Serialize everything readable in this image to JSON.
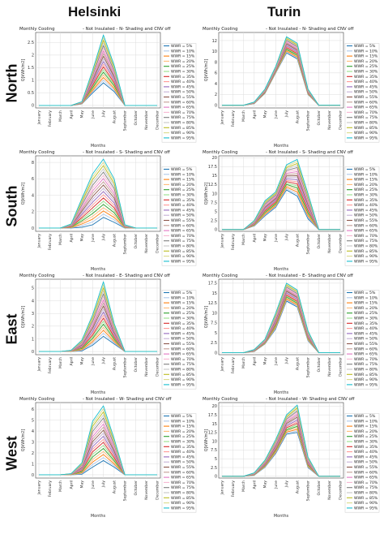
{
  "columns": [
    "Helsinki",
    "Turin"
  ],
  "rows": [
    "North",
    "South",
    "East",
    "West"
  ],
  "legend_labels": [
    "WWR = 5%",
    "WWR = 10%",
    "WWR = 15%",
    "WWR = 20%",
    "WWR = 25%",
    "WWR = 30%",
    "WWR = 35%",
    "WWR = 40%",
    "WWR = 45%",
    "WWR = 50%",
    "WWR = 55%",
    "WWR = 60%",
    "WWR = 65%",
    "WWR = 70%",
    "WWR = 75%",
    "WWR = 80%",
    "WWR = 85%",
    "WWR = 90%",
    "WWR = 95%"
  ],
  "series_colors": [
    "#1f77b4",
    "#aec7e8",
    "#ff7f0e",
    "#ffbb78",
    "#2ca02c",
    "#98df8a",
    "#d62728",
    "#ff9896",
    "#9467bd",
    "#c5b0d5",
    "#8c564b",
    "#c49c94",
    "#e377c2",
    "#f7b6d2",
    "#7f7f7f",
    "#c7c7c7",
    "#bcbd22",
    "#dbdb8d",
    "#17becf"
  ],
  "chart_data": [
    {
      "type": "line",
      "title_left": "Monthly Cooling",
      "title_right": "- Not Insulated - N- Shading and CNV off",
      "xlabel": "Months",
      "ylabel": "Q[kWh/m2]",
      "categories": [
        "January",
        "February",
        "March",
        "April",
        "May",
        "June",
        "July",
        "August",
        "September",
        "October",
        "November",
        "December"
      ],
      "yticks": [
        0.0,
        0.5,
        1.0,
        1.5,
        2.0,
        2.5
      ],
      "ylim": [
        -0.1,
        2.9
      ],
      "peak_low": [
        0,
        0,
        0,
        0,
        0.06,
        0.5,
        0.9,
        0.55,
        0,
        0,
        0,
        0
      ],
      "peak_high": [
        0,
        0,
        0,
        0,
        0.15,
        1.4,
        2.8,
        1.6,
        0,
        0,
        0,
        0
      ]
    },
    {
      "type": "line",
      "title_left": "Monthly Cooling",
      "title_right": "- Not Insulated - N- Shading and CNV off",
      "xlabel": "Months",
      "ylabel": "Q[kWh/m2]",
      "categories": [
        "January",
        "February",
        "March",
        "April",
        "May",
        "June",
        "July",
        "August",
        "September",
        "October",
        "November",
        "December"
      ],
      "yticks": [
        0,
        2,
        4,
        6,
        8,
        10,
        12
      ],
      "ylim": [
        -0.5,
        13.5
      ],
      "peak_low": [
        0,
        0,
        0,
        0.3,
        2.2,
        6.0,
        9.7,
        8.6,
        2.0,
        0,
        0,
        0
      ],
      "peak_high": [
        0,
        0,
        0,
        0.6,
        3.0,
        7.2,
        12.7,
        11.5,
        3.0,
        0,
        0,
        0
      ]
    },
    {
      "type": "line",
      "title_left": "Monthly Cooling",
      "title_right": "- Not Insulated - S- Shading and CNV off",
      "xlabel": "Months",
      "ylabel": "Q[kWh/m2]",
      "categories": [
        "January",
        "February",
        "March",
        "April",
        "May",
        "June",
        "July",
        "August",
        "September",
        "October",
        "November",
        "December"
      ],
      "yticks": [
        0,
        2,
        4,
        6,
        8
      ],
      "ylim": [
        -0.4,
        8.8
      ],
      "peak_low": [
        0,
        0,
        0,
        0,
        0.1,
        0.4,
        1.3,
        0.7,
        0,
        0,
        0,
        0
      ],
      "peak_high": [
        0,
        0,
        0,
        0.5,
        3.6,
        6.6,
        8.4,
        6.0,
        0.4,
        0,
        0,
        0
      ]
    },
    {
      "type": "line",
      "title_left": "Monthly Cooling",
      "title_right": "- Not Insulated - S- Shading and CNV off",
      "xlabel": "Months",
      "ylabel": "Q[kWh/m2]",
      "categories": [
        "January",
        "February",
        "March",
        "April",
        "May",
        "June",
        "July",
        "August",
        "September",
        "October",
        "November",
        "December"
      ],
      "yticks": [
        0.0,
        2.5,
        5.0,
        7.5,
        10.0,
        12.5,
        15.0,
        17.5,
        20.0
      ],
      "ylim": [
        -0.5,
        20.5
      ],
      "peak_low": [
        0,
        0,
        0,
        1.0,
        3.8,
        6.2,
        11.0,
        9.3,
        3.0,
        0,
        0,
        0
      ],
      "peak_high": [
        0,
        0,
        0,
        2.5,
        8.0,
        10.5,
        18.0,
        19.5,
        10.0,
        0,
        0,
        0
      ]
    },
    {
      "type": "line",
      "title_left": "Monthly Cooling",
      "title_right": "- Not Insulated - E- Shading and CNV off",
      "xlabel": "Months",
      "ylabel": "Q[kWh/m2]",
      "categories": [
        "January",
        "February",
        "March",
        "April",
        "May",
        "June",
        "July",
        "August",
        "September",
        "October",
        "November",
        "December"
      ],
      "yticks": [
        0,
        1,
        2,
        3,
        4,
        5
      ],
      "ylim": [
        -0.25,
        5.7
      ],
      "peak_low": [
        0,
        0,
        0,
        0,
        0.05,
        0.5,
        1.2,
        0.6,
        0,
        0,
        0,
        0
      ],
      "peak_high": [
        0,
        0,
        0,
        0.1,
        0.9,
        2.9,
        5.5,
        2.2,
        0,
        0,
        0,
        0
      ]
    },
    {
      "type": "line",
      "title_left": "Monthly Cooling",
      "title_right": "- Not Insulated - E- Shading and CNV off",
      "xlabel": "Months",
      "ylabel": "Q[kWh/m2]",
      "categories": [
        "January",
        "February",
        "March",
        "April",
        "May",
        "June",
        "July",
        "August",
        "September",
        "October",
        "November",
        "December"
      ],
      "yticks": [
        0.0,
        2.5,
        5.0,
        7.5,
        10.0,
        12.5,
        15.0,
        17.5
      ],
      "ylim": [
        -0.5,
        18.5
      ],
      "peak_low": [
        0,
        0,
        0,
        0.3,
        2.2,
        6.0,
        13.0,
        11.5,
        3.0,
        0,
        0,
        0
      ],
      "peak_high": [
        0,
        0,
        0,
        0.8,
        3.4,
        10.0,
        17.5,
        15.8,
        5.5,
        0,
        0,
        0
      ]
    },
    {
      "type": "line",
      "title_left": "Monthly Cooling",
      "title_right": "- Not Insulated - W- Shading and CNV off",
      "xlabel": "Months",
      "ylabel": "Q[kWh/m2]",
      "categories": [
        "January",
        "February",
        "March",
        "April",
        "May",
        "June",
        "July",
        "August",
        "September",
        "October",
        "November",
        "December"
      ],
      "yticks": [
        0,
        1,
        2,
        3,
        4,
        5,
        6
      ],
      "ylim": [
        -0.3,
        6.6
      ],
      "peak_low": [
        0,
        0,
        0,
        0,
        0.05,
        0.7,
        1.3,
        0.7,
        0,
        0,
        0,
        0
      ],
      "peak_high": [
        0,
        0,
        0,
        0.1,
        1.1,
        4.9,
        6.3,
        3.3,
        0,
        0,
        0,
        0
      ]
    },
    {
      "type": "line",
      "title_left": "Monthly Cooling",
      "title_right": "- Not Insulated - W- Shading and CNV off",
      "xlabel": "Months",
      "ylabel": "Q[kWh/m2]",
      "categories": [
        "January",
        "February",
        "March",
        "April",
        "May",
        "June",
        "July",
        "August",
        "September",
        "October",
        "November",
        "December"
      ],
      "yticks": [
        0.0,
        2.5,
        5.0,
        7.5,
        10.0,
        12.5,
        15.0,
        17.5,
        20.0
      ],
      "ylim": [
        -0.5,
        21.0
      ],
      "peak_low": [
        0,
        0,
        0,
        0.3,
        2.6,
        6.5,
        12.0,
        12.5,
        2.5,
        0,
        0,
        0
      ],
      "peak_high": [
        0,
        0,
        0,
        1.0,
        4.6,
        10.5,
        17.5,
        20.3,
        5.5,
        0,
        0,
        0
      ]
    }
  ]
}
